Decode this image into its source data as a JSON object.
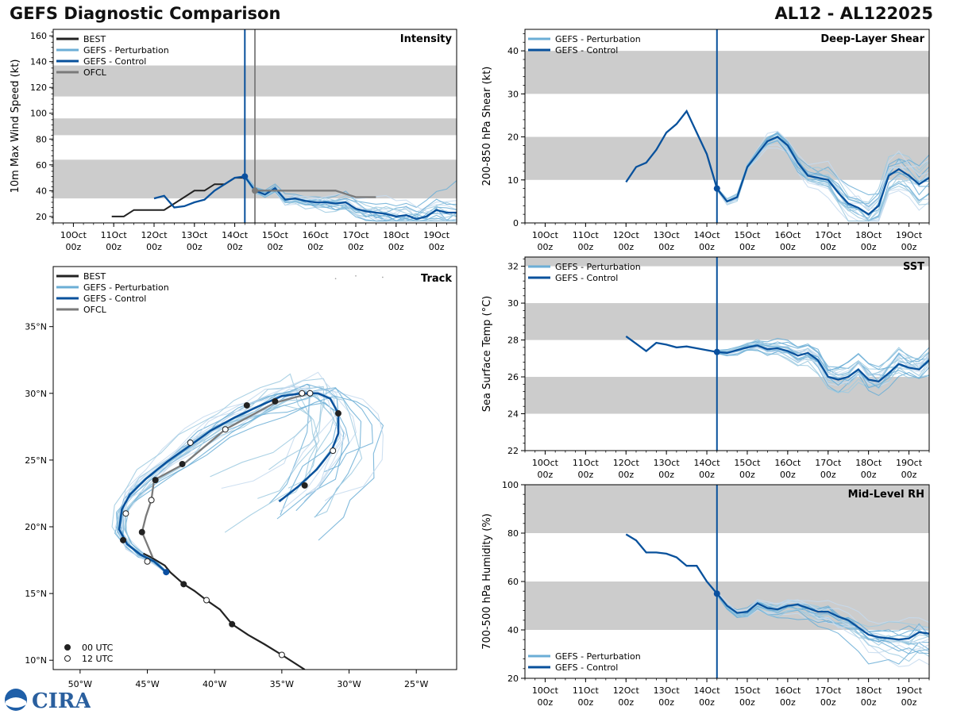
{
  "header": {
    "title": "GEFS Diagnostic Comparison",
    "storm_id": "AL12 - AL122025"
  },
  "logo": {
    "label": "CIRA"
  },
  "colors": {
    "best": "#222222",
    "perturbation": "#6baed6",
    "control": "#08519c",
    "ofcl": "#7a7a7a",
    "band": "#cccccc",
    "marker": "#0b4fa1"
  },
  "legend": {
    "best": "BEST",
    "perturbation": "GEFS - Perturbation",
    "control": "GEFS - Control",
    "ofcl": "OFCL",
    "utc00": "00 UTC",
    "utc12": "12 UTC"
  },
  "time_ticks": [
    {
      "top": "10Oct",
      "bottom": "00z"
    },
    {
      "top": "11Oct",
      "bottom": "00z"
    },
    {
      "top": "12Oct",
      "bottom": "00z"
    },
    {
      "top": "13Oct",
      "bottom": "00z"
    },
    {
      "top": "14Oct",
      "bottom": "00z"
    },
    {
      "top": "15Oct",
      "bottom": "00z"
    },
    {
      "top": "16Oct",
      "bottom": "00z"
    },
    {
      "top": "17Oct",
      "bottom": "00z"
    },
    {
      "top": "18Oct",
      "bottom": "00z"
    },
    {
      "top": "19Oct",
      "bottom": "00z"
    }
  ],
  "chart_data": [
    {
      "id": "intensity",
      "type": "line",
      "title": "Intensity",
      "ylabel": "10m Max Wind Speed (kt)",
      "xlim": [
        -0.5,
        9.5
      ],
      "ylim": [
        15,
        165
      ],
      "yticks": [
        20,
        40,
        60,
        80,
        100,
        120,
        140,
        160
      ],
      "bands": [
        [
          34,
          64
        ],
        [
          83,
          96
        ],
        [
          113,
          137
        ]
      ],
      "init_line": 4.25,
      "ofcl_line": 4.5,
      "series": [
        {
          "name": "BEST",
          "x": [
            0.95,
            1.25,
            1.5,
            2.0,
            2.25,
            2.5,
            2.75,
            3.0,
            3.25,
            3.5,
            3.75,
            4.0,
            4.25
          ],
          "y": [
            20,
            20,
            25,
            25,
            25,
            30,
            35,
            40,
            40,
            45,
            45,
            50,
            50
          ]
        },
        {
          "name": "GEFS - Control",
          "x": [
            2.0,
            2.25,
            2.5,
            2.75,
            3.0,
            3.25,
            3.5,
            3.75,
            4.0,
            4.25,
            4.5,
            4.75,
            5.0,
            5.25,
            5.5,
            5.75,
            6.0,
            6.25,
            6.5,
            6.75,
            7.0,
            7.25,
            7.5,
            7.75,
            8.0,
            8.25,
            8.5,
            8.75,
            9.0,
            9.25,
            9.5
          ],
          "y": [
            34,
            36,
            27,
            28,
            31,
            33,
            40,
            45,
            50,
            51,
            40,
            37,
            42,
            33,
            34,
            32,
            31,
            31,
            30,
            31,
            26,
            24,
            23,
            22,
            20,
            21,
            18,
            20,
            25,
            23,
            23
          ]
        },
        {
          "name": "OFCL",
          "x": [
            4.5,
            4.75,
            5.0,
            5.5,
            6.0,
            6.5,
            7.0,
            7.5
          ],
          "y": [
            40,
            40,
            40,
            40,
            40,
            40,
            35,
            35
          ]
        }
      ]
    },
    {
      "id": "shear",
      "type": "line",
      "title": "Deep-Layer Shear",
      "ylabel": "200-850 hPa Shear (kt)",
      "xlim": [
        -0.5,
        9.5
      ],
      "ylim": [
        0,
        45
      ],
      "yticks": [
        0,
        10,
        20,
        30,
        40
      ],
      "bands": [
        [
          10,
          20
        ],
        [
          30,
          40
        ]
      ],
      "init_line": 4.25,
      "series": [
        {
          "name": "GEFS - Control",
          "x": [
            2.0,
            2.25,
            2.5,
            2.75,
            3.0,
            3.25,
            3.5,
            3.75,
            4.0,
            4.25,
            4.5,
            4.75,
            5.0,
            5.25,
            5.5,
            5.75,
            6.0,
            6.25,
            6.5,
            6.75,
            7.0,
            7.25,
            7.5,
            7.75,
            8.0,
            8.25,
            8.5,
            8.75,
            9.0,
            9.25,
            9.5
          ],
          "y": [
            9.5,
            13,
            14,
            17,
            21,
            23,
            26,
            21,
            16,
            8,
            5,
            6,
            13,
            16,
            19,
            20,
            18,
            14,
            11,
            10.5,
            10,
            7,
            4.5,
            3.5,
            2,
            4,
            11,
            12.5,
            11,
            9,
            10.5
          ]
        }
      ]
    },
    {
      "id": "sst",
      "type": "line",
      "title": "SST",
      "ylabel": "Sea Surface Temp (°C)",
      "xlim": [
        -0.5,
        9.5
      ],
      "ylim": [
        22,
        32.5
      ],
      "yticks": [
        22,
        24,
        26,
        28,
        30,
        32
      ],
      "bands": [
        [
          24,
          26
        ],
        [
          28,
          30
        ],
        [
          32,
          33
        ]
      ],
      "init_line": 4.25,
      "series": [
        {
          "name": "GEFS - Control",
          "x": [
            2.0,
            2.25,
            2.5,
            2.75,
            3.0,
            3.25,
            3.5,
            3.75,
            4.0,
            4.25,
            4.5,
            4.75,
            5.0,
            5.25,
            5.5,
            5.75,
            6.0,
            6.25,
            6.5,
            6.75,
            7.0,
            7.25,
            7.5,
            7.75,
            8.0,
            8.25,
            8.5,
            8.75,
            9.0,
            9.25,
            9.5
          ],
          "y": [
            28.2,
            27.8,
            27.4,
            27.85,
            27.75,
            27.6,
            27.65,
            27.55,
            27.45,
            27.35,
            27.3,
            27.45,
            27.6,
            27.7,
            27.5,
            27.55,
            27.4,
            27.15,
            27.3,
            26.9,
            26.0,
            25.85,
            26.0,
            26.4,
            25.85,
            25.75,
            26.2,
            26.7,
            26.5,
            26.4,
            26.9
          ]
        }
      ]
    },
    {
      "id": "rh",
      "type": "line",
      "title": "Mid-Level RH",
      "ylabel": "700-500 hPa Humidity (%)",
      "xlim": [
        -0.5,
        9.5
      ],
      "ylim": [
        20,
        100
      ],
      "yticks": [
        20,
        40,
        60,
        80,
        100
      ],
      "bands": [
        [
          40,
          60
        ],
        [
          80,
          100
        ]
      ],
      "init_line": 4.25,
      "series": [
        {
          "name": "GEFS - Control",
          "x": [
            2.0,
            2.25,
            2.5,
            2.75,
            3.0,
            3.25,
            3.5,
            3.75,
            4.0,
            4.25,
            4.5,
            4.75,
            5.0,
            5.25,
            5.5,
            5.75,
            6.0,
            6.25,
            6.5,
            6.75,
            7.0,
            7.25,
            7.5,
            7.75,
            8.0,
            8.25,
            8.5,
            8.75,
            9.0,
            9.25,
            9.5
          ],
          "y": [
            79.5,
            77,
            72,
            72,
            71.5,
            70,
            66.5,
            66.5,
            60,
            55,
            50,
            47,
            47.5,
            51,
            49,
            48.5,
            50,
            50.5,
            49,
            47.5,
            47.5,
            45.5,
            44,
            41,
            38,
            37,
            36.5,
            36,
            36.5,
            39,
            38.5
          ]
        }
      ]
    },
    {
      "id": "track",
      "type": "scatter",
      "title": "Track",
      "xlim": [
        -52,
        -22
      ],
      "ylim": [
        9.3,
        39.5
      ],
      "xticks": [
        {
          "v": -50,
          "label": "50°W"
        },
        {
          "v": -45,
          "label": "45°W"
        },
        {
          "v": -40,
          "label": "40°W"
        },
        {
          "v": -35,
          "label": "35°W"
        },
        {
          "v": -30,
          "label": "30°W"
        },
        {
          "v": -25,
          "label": "25°W"
        }
      ],
      "yticks": [
        {
          "v": 10,
          "label": "10°N"
        },
        {
          "v": 15,
          "label": "15°N"
        },
        {
          "v": 20,
          "label": "20°N"
        },
        {
          "v": 25,
          "label": "25°N"
        },
        {
          "v": 30,
          "label": "30°N"
        },
        {
          "v": 35,
          "label": "35°N"
        }
      ],
      "best": {
        "lon": [
          -33.3,
          -35.0,
          -36.3,
          -37.5,
          -38.7,
          -39.6,
          -40.6,
          -41.5,
          -42.3,
          -43.3,
          -43.7,
          -44.7,
          -45.3
        ],
        "lat": [
          9.3,
          10.4,
          11.2,
          11.9,
          12.7,
          13.8,
          14.5,
          15.2,
          15.7,
          16.6,
          17.1,
          17.7,
          18.0
        ]
      },
      "best_00": [
        {
          "lon": -38.7,
          "lat": 12.7
        },
        {
          "lon": -42.3,
          "lat": 15.7
        }
      ],
      "best_12": [
        {
          "lon": -35.0,
          "lat": 10.4
        },
        {
          "lon": -40.6,
          "lat": 14.5
        }
      ],
      "control": {
        "lon": [
          -43.6,
          -44.5,
          -45.5,
          -46.5,
          -47.1,
          -46.9,
          -46.3,
          -45.1,
          -43.5,
          -41.8,
          -40.3,
          -38.5,
          -36.8,
          -35.0,
          -33.5,
          -32.3,
          -31.4,
          -30.8,
          -30.8,
          -31.3,
          -32.4,
          -33.8,
          -35.2
        ],
        "lat": [
          16.6,
          17.4,
          17.9,
          18.7,
          19.8,
          21.3,
          22.4,
          23.6,
          24.9,
          26.1,
          27.2,
          28.2,
          29.0,
          29.8,
          30.0,
          30.0,
          29.6,
          28.5,
          27.0,
          25.7,
          24.3,
          23.0,
          21.9
        ]
      },
      "ofcl": {
        "lon": [
          -44.6,
          -45.4,
          -45.1,
          -44.7,
          -44.5,
          -42.3,
          -39.2,
          -35.5,
          -32.9
        ],
        "lat": [
          17.7,
          19.6,
          20.8,
          22.0,
          23.5,
          24.7,
          27.3,
          29.3,
          30.0
        ]
      },
      "ofcl_00": [
        {
          "lon": -45.4,
          "lat": 19.6
        },
        {
          "lon": -46.8,
          "lat": 19.0
        },
        {
          "lon": -44.4,
          "lat": 23.5
        },
        {
          "lon": -42.4,
          "lat": 24.7
        },
        {
          "lon": -37.6,
          "lat": 29.1
        },
        {
          "lon": -35.5,
          "lat": 29.4
        },
        {
          "lon": -30.8,
          "lat": 28.5
        },
        {
          "lon": -33.3,
          "lat": 23.1
        }
      ],
      "ofcl_12": [
        {
          "lon": -45.0,
          "lat": 17.4
        },
        {
          "lon": -46.6,
          "lat": 21.0
        },
        {
          "lon": -44.7,
          "lat": 22.0
        },
        {
          "lon": -41.8,
          "lat": 26.3
        },
        {
          "lon": -39.2,
          "lat": 27.3
        },
        {
          "lon": -33.5,
          "lat": 30.0
        },
        {
          "lon": -32.9,
          "lat": 30.0
        },
        {
          "lon": -31.2,
          "lat": 25.7
        }
      ],
      "init_point": {
        "lon": -43.6,
        "lat": 16.6
      }
    }
  ]
}
